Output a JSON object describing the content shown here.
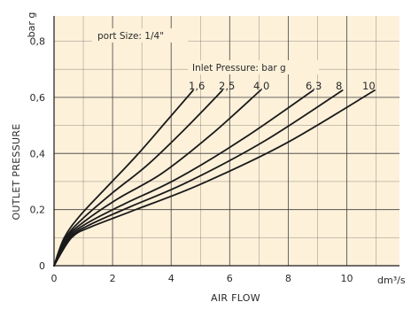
{
  "chart_data": {
    "type": "line",
    "title": "",
    "xlabel": "AIR FLOW",
    "xunit": "dm³/s",
    "ylabel": "OUTLET PRESSURE",
    "yunit": "bar g",
    "xlim": [
      0,
      11.8
    ],
    "ylim": [
      0,
      0.89
    ],
    "grid": true,
    "x_ticks": [
      {
        "value": 0,
        "label": "0"
      },
      {
        "value": 2,
        "label": "2"
      },
      {
        "value": 4,
        "label": "4"
      },
      {
        "value": 6,
        "label": "6"
      },
      {
        "value": 8,
        "label": "8"
      },
      {
        "value": 10,
        "label": "10"
      }
    ],
    "y_ticks": [
      {
        "value": 0,
        "label": "0"
      },
      {
        "value": 0.2,
        "label": "0,2"
      },
      {
        "value": 0.4,
        "label": "0,4"
      },
      {
        "value": 0.6,
        "label": "0,6"
      },
      {
        "value": 0.8,
        "label": "0,8"
      }
    ],
    "annotations": {
      "port_size": "port Size: 1/4\"",
      "inlet_pressure": "Inlet Pressure: bar g"
    },
    "series": [
      {
        "name": "1,6",
        "x": [
          0,
          0.35,
          0.9,
          1.8,
          2.8,
          3.8,
          4.75
        ],
        "y": [
          0,
          0.1,
          0.18,
          0.28,
          0.39,
          0.51,
          0.625
        ]
      },
      {
        "name": "2,5",
        "x": [
          0,
          0.4,
          1.0,
          2.0,
          3.2,
          4.5,
          5.75
        ],
        "y": [
          0,
          0.1,
          0.17,
          0.26,
          0.36,
          0.49,
          0.625
        ]
      },
      {
        "name": "4,0",
        "x": [
          0,
          0.45,
          1.0,
          2.2,
          3.7,
          5.4,
          7.05
        ],
        "y": [
          0,
          0.1,
          0.155,
          0.24,
          0.33,
          0.47,
          0.625
        ]
      },
      {
        "name": "6,3",
        "x": [
          0,
          0.5,
          1.1,
          2.4,
          4.2,
          6.5,
          8.85
        ],
        "y": [
          0,
          0.1,
          0.15,
          0.22,
          0.31,
          0.455,
          0.625
        ]
      },
      {
        "name": "8",
        "x": [
          0,
          0.55,
          1.2,
          2.6,
          4.6,
          7.2,
          9.85
        ],
        "y": [
          0,
          0.1,
          0.145,
          0.21,
          0.3,
          0.445,
          0.625
        ]
      },
      {
        "name": "10",
        "x": [
          0,
          0.6,
          1.3,
          2.8,
          5.0,
          7.9,
          10.95
        ],
        "y": [
          0,
          0.1,
          0.14,
          0.2,
          0.29,
          0.435,
          0.625
        ]
      }
    ],
    "colors": {
      "plot_background": "#fdf1da",
      "grid": "#3a3a3a",
      "line": "#1a1a1a",
      "text": "#2a2a2a"
    }
  }
}
